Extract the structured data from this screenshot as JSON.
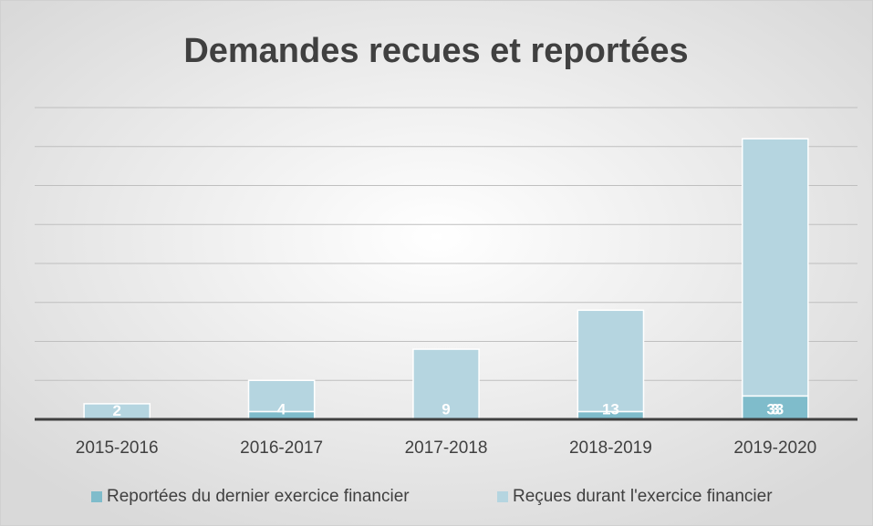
{
  "chart_data": {
    "type": "stacked_bar",
    "title": "Demandes recues et reportées",
    "categories": [
      "2015-2016",
      "2016-2017",
      "2017-2018",
      "2018-2019",
      "2019-2020"
    ],
    "series": [
      {
        "name": "Reportées du dernier exercice financier",
        "color": "#7fbccb",
        "values": [
          0,
          1,
          0,
          1,
          3
        ],
        "value_labels": [
          null,
          null,
          null,
          null,
          "3"
        ]
      },
      {
        "name": "Reçues durant l'exercice financier",
        "color": "#b5d5e0",
        "values": [
          2,
          4,
          9,
          13,
          33
        ],
        "value_labels": [
          "2",
          "4",
          "9",
          "13",
          "33"
        ]
      }
    ],
    "ylim": [
      0,
      40
    ],
    "yticks": [
      0,
      5,
      10,
      15,
      20,
      25,
      30,
      35,
      40
    ],
    "grid": true,
    "legend": "bottom"
  }
}
